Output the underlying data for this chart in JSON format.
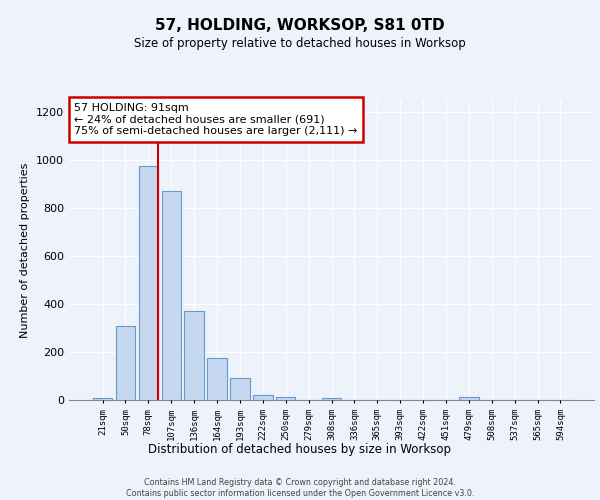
{
  "title_line1": "57, HOLDING, WORKSOP, S81 0TD",
  "title_line2": "Size of property relative to detached houses in Worksop",
  "xlabel": "Distribution of detached houses by size in Worksop",
  "ylabel": "Number of detached properties",
  "bar_labels": [
    "21sqm",
    "50sqm",
    "78sqm",
    "107sqm",
    "136sqm",
    "164sqm",
    "193sqm",
    "222sqm",
    "250sqm",
    "279sqm",
    "308sqm",
    "336sqm",
    "365sqm",
    "393sqm",
    "422sqm",
    "451sqm",
    "479sqm",
    "508sqm",
    "537sqm",
    "565sqm",
    "594sqm"
  ],
  "bar_values": [
    10,
    310,
    975,
    870,
    370,
    175,
    90,
    22,
    12,
    0,
    8,
    0,
    0,
    0,
    0,
    0,
    12,
    0,
    0,
    0,
    0
  ],
  "bar_color": "#c5d8f0",
  "bar_edge_color": "#6699cc",
  "vline_color": "#cc0000",
  "vline_bar_index": 2,
  "annotation_text": "57 HOLDING: 91sqm\n← 24% of detached houses are smaller (691)\n75% of semi-detached houses are larger (2,111) →",
  "annotation_box_facecolor": "#ffffff",
  "annotation_box_edgecolor": "#cc0000",
  "ylim": [
    0,
    1250
  ],
  "yticks": [
    0,
    200,
    400,
    600,
    800,
    1000,
    1200
  ],
  "footnote": "Contains HM Land Registry data © Crown copyright and database right 2024.\nContains public sector information licensed under the Open Government Licence v3.0.",
  "bg_color": "#eef2fb",
  "grid_color": "#d0d8e8"
}
